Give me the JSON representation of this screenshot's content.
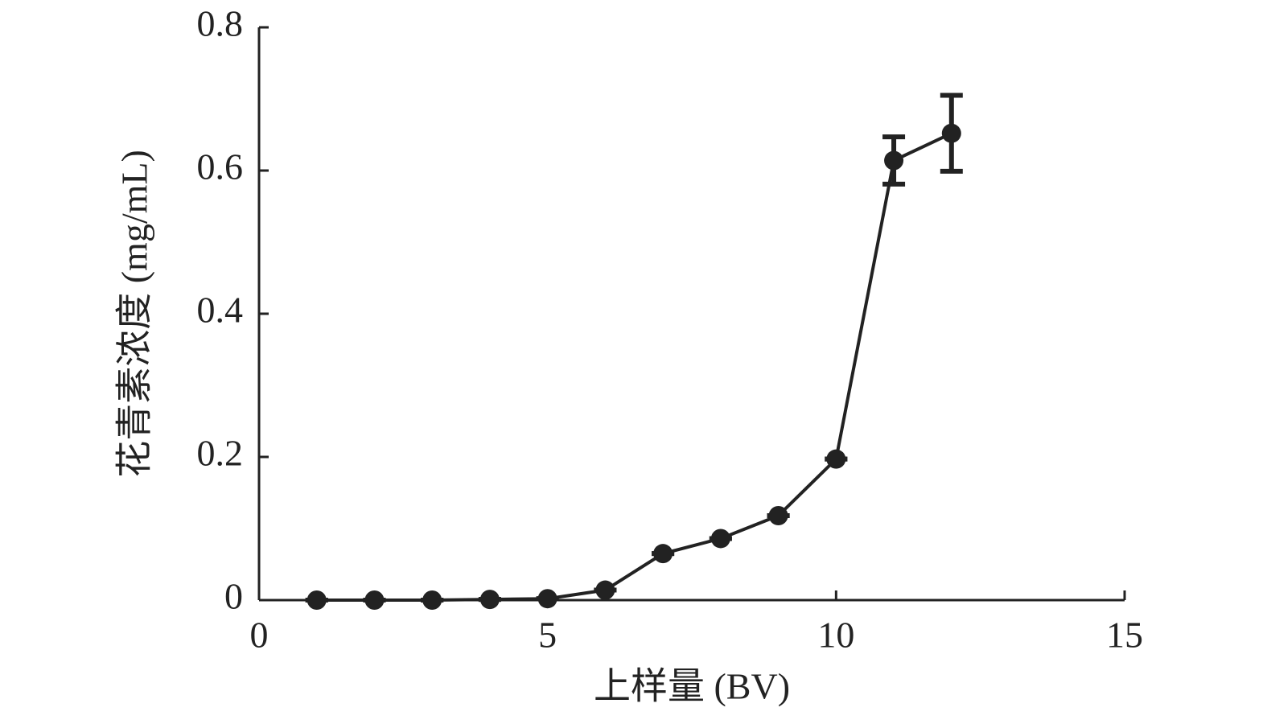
{
  "chart_data": {
    "type": "line",
    "x_label": "上样量 (BV)",
    "y_label": "花青素浓度 (mg/mL)",
    "x": [
      1,
      2,
      3,
      4,
      5,
      6,
      7,
      8,
      9,
      10,
      11,
      12
    ],
    "series": [
      {
        "color": "#222222",
        "values": [
          0,
          0,
          0,
          0.001,
          0.002,
          0.014,
          0.065,
          0.086,
          0.118,
          0.197,
          0.614,
          0.652
        ],
        "errors": [
          0,
          0,
          0,
          0,
          0,
          0,
          0,
          0,
          0,
          0,
          0.033,
          0.053
        ]
      }
    ],
    "xlim": [
      0,
      15
    ],
    "xticks": [
      0,
      5,
      10,
      15
    ],
    "ylim": [
      0,
      0.8
    ],
    "yticks": [
      0,
      0.2,
      0.4,
      0.6,
      0.8
    ],
    "grid": false
  }
}
